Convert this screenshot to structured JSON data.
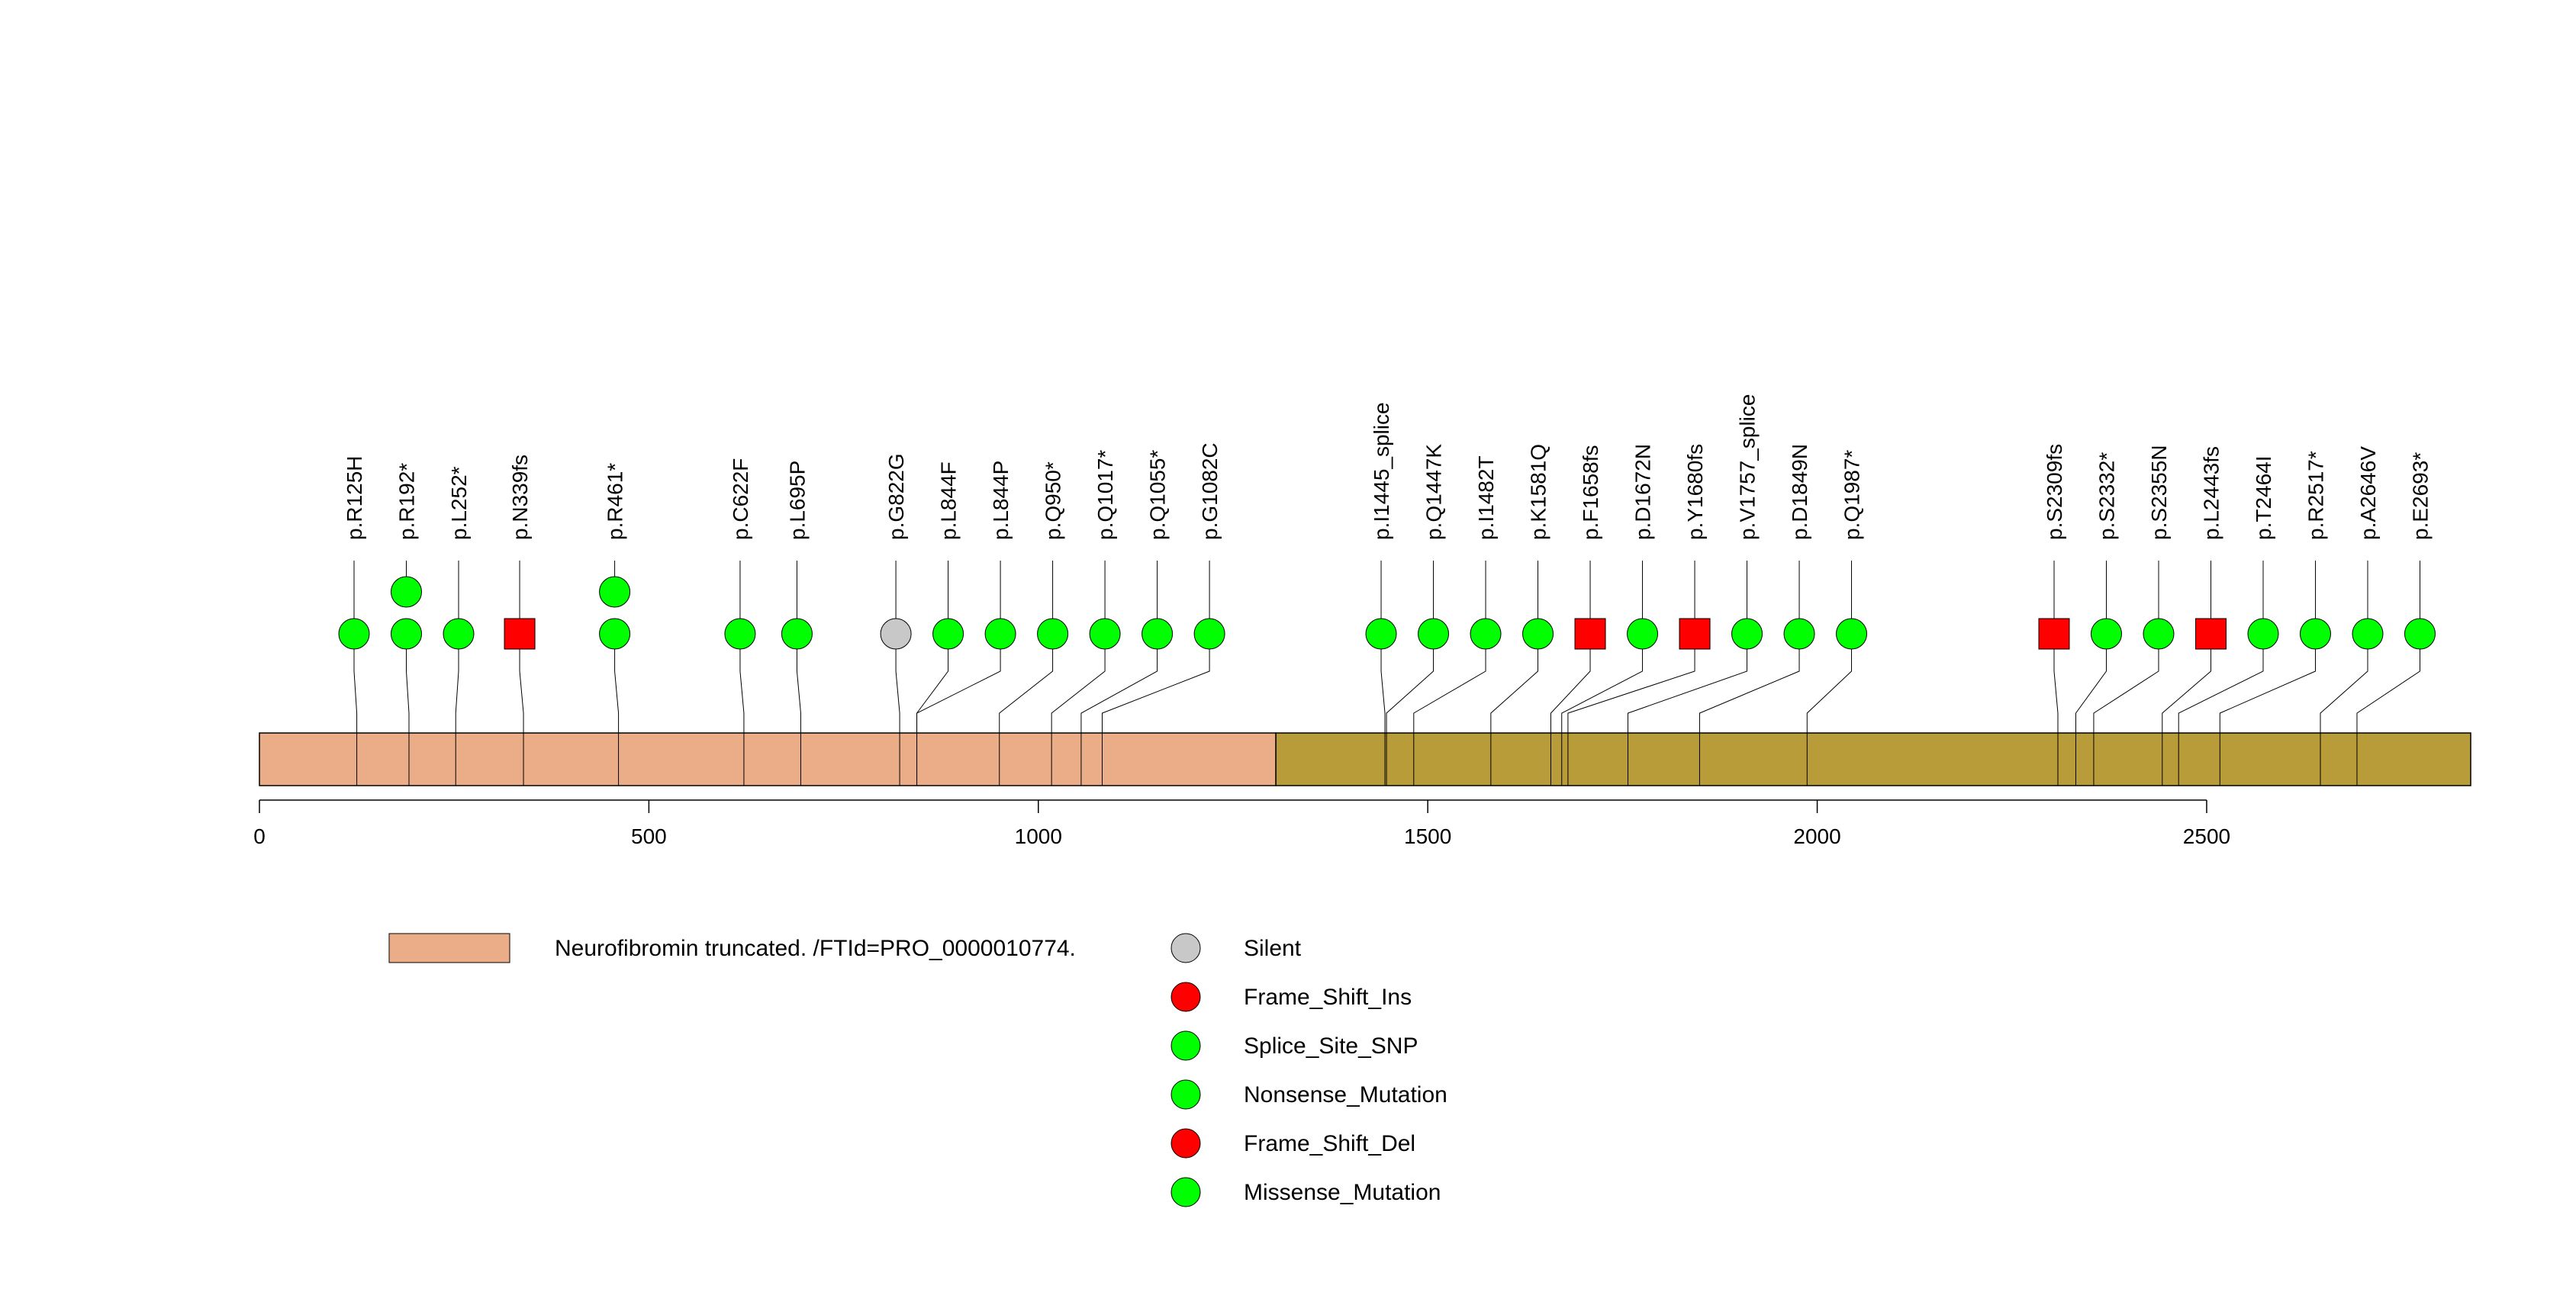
{
  "chart_data": {
    "type": "lollipop",
    "protein_length": 2839,
    "x_ticks": [
      0,
      500,
      1000,
      1500,
      2000,
      2500
    ],
    "domains": [
      {
        "start": 1,
        "end": 1305,
        "color": "#EBAD87",
        "label": "Neurofibromin truncated. /FTId=PRO_0000010774."
      },
      {
        "start": 1305,
        "end": 2839,
        "color": "#B99C3A",
        "label": ""
      }
    ],
    "mutation_types": [
      {
        "name": "Silent",
        "color": "#C8C8C8"
      },
      {
        "name": "Frame_Shift_Ins",
        "color": "#FF0000"
      },
      {
        "name": "Splice_Site_SNP",
        "color": "#00FF00"
      },
      {
        "name": "Nonsense_Mutation",
        "color": "#00FF00"
      },
      {
        "name": "Frame_Shift_Del",
        "color": "#FF0000"
      },
      {
        "name": "Missense_Mutation",
        "color": "#00FF00"
      }
    ],
    "mutations": [
      {
        "label": "p.R125H",
        "pos": 125,
        "count": 1,
        "shape": "circle",
        "color": "#00FF00"
      },
      {
        "label": "p.R192*",
        "pos": 192,
        "count": 2,
        "shape": "circle",
        "color": "#00FF00"
      },
      {
        "label": "p.L252*",
        "pos": 252,
        "count": 1,
        "shape": "circle",
        "color": "#00FF00"
      },
      {
        "label": "p.N339fs",
        "pos": 339,
        "count": 1,
        "shape": "square",
        "color": "#FF0000"
      },
      {
        "label": "p.R461*",
        "pos": 461,
        "count": 2,
        "shape": "circle",
        "color": "#00FF00"
      },
      {
        "label": "p.C622F",
        "pos": 622,
        "count": 1,
        "shape": "circle",
        "color": "#00FF00"
      },
      {
        "label": "p.L695P",
        "pos": 695,
        "count": 1,
        "shape": "circle",
        "color": "#00FF00"
      },
      {
        "label": "p.G822G",
        "pos": 822,
        "count": 1,
        "shape": "circle",
        "color": "#C8C8C8"
      },
      {
        "label": "p.L844F",
        "pos": 844,
        "count": 1,
        "shape": "circle",
        "color": "#00FF00"
      },
      {
        "label": "p.L844P",
        "pos": 844,
        "count": 1,
        "shape": "circle",
        "color": "#00FF00"
      },
      {
        "label": "p.Q950*",
        "pos": 950,
        "count": 1,
        "shape": "circle",
        "color": "#00FF00"
      },
      {
        "label": "p.Q1017*",
        "pos": 1017,
        "count": 1,
        "shape": "circle",
        "color": "#00FF00"
      },
      {
        "label": "p.Q1055*",
        "pos": 1055,
        "count": 1,
        "shape": "circle",
        "color": "#00FF00"
      },
      {
        "label": "p.G1082C",
        "pos": 1082,
        "count": 1,
        "shape": "circle",
        "color": "#00FF00"
      },
      {
        "label": "p.I1445_splice",
        "pos": 1445,
        "count": 1,
        "shape": "circle",
        "color": "#00FF00"
      },
      {
        "label": "p.Q1447K",
        "pos": 1447,
        "count": 1,
        "shape": "circle",
        "color": "#00FF00"
      },
      {
        "label": "p.I1482T",
        "pos": 1482,
        "count": 1,
        "shape": "circle",
        "color": "#00FF00"
      },
      {
        "label": "p.K1581Q",
        "pos": 1581,
        "count": 1,
        "shape": "circle",
        "color": "#00FF00"
      },
      {
        "label": "p.F1658fs",
        "pos": 1658,
        "count": 1,
        "shape": "square",
        "color": "#FF0000"
      },
      {
        "label": "p.D1672N",
        "pos": 1672,
        "count": 1,
        "shape": "circle",
        "color": "#00FF00"
      },
      {
        "label": "p.Y1680fs",
        "pos": 1680,
        "count": 1,
        "shape": "square",
        "color": "#FF0000"
      },
      {
        "label": "p.V1757_splice",
        "pos": 1757,
        "count": 1,
        "shape": "circle",
        "color": "#00FF00"
      },
      {
        "label": "p.D1849N",
        "pos": 1849,
        "count": 1,
        "shape": "circle",
        "color": "#00FF00"
      },
      {
        "label": "p.Q1987*",
        "pos": 1987,
        "count": 1,
        "shape": "circle",
        "color": "#00FF00"
      },
      {
        "label": "p.S2309fs",
        "pos": 2309,
        "count": 1,
        "shape": "square",
        "color": "#FF0000"
      },
      {
        "label": "p.S2332*",
        "pos": 2332,
        "count": 1,
        "shape": "circle",
        "color": "#00FF00"
      },
      {
        "label": "p.S2355N",
        "pos": 2355,
        "count": 1,
        "shape": "circle",
        "color": "#00FF00"
      },
      {
        "label": "p.L2443fs",
        "pos": 2443,
        "count": 1,
        "shape": "square",
        "color": "#FF0000"
      },
      {
        "label": "p.T2464I",
        "pos": 2464,
        "count": 1,
        "shape": "circle",
        "color": "#00FF00"
      },
      {
        "label": "p.R2517*",
        "pos": 2517,
        "count": 1,
        "shape": "circle",
        "color": "#00FF00"
      },
      {
        "label": "p.A2646V",
        "pos": 2646,
        "count": 1,
        "shape": "circle",
        "color": "#00FF00"
      },
      {
        "label": "p.E2693*",
        "pos": 2693,
        "count": 1,
        "shape": "circle",
        "color": "#00FF00"
      }
    ]
  }
}
